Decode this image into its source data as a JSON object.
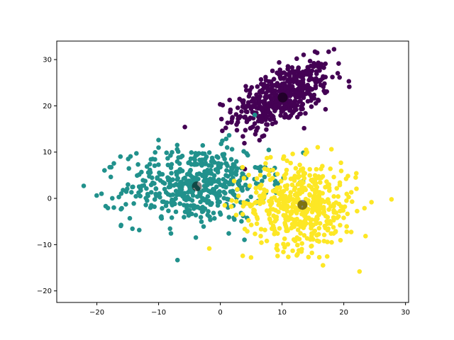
{
  "chart_data": {
    "type": "scatter",
    "title": "",
    "xlabel": "",
    "ylabel": "",
    "xlim": [
      -26.5,
      30.5
    ],
    "ylim": [
      -22.5,
      34
    ],
    "xticks": [
      -20,
      -10,
      0,
      10,
      20,
      30
    ],
    "yticks": [
      -20,
      -10,
      0,
      10,
      20,
      30
    ],
    "grid": false,
    "legend": "none",
    "series": [
      {
        "color": "#440154",
        "count": 500,
        "center_approx": [
          10,
          22
        ],
        "spread_approx": [
          3.9,
          3.6
        ],
        "correlation_approx": 0.55
      },
      {
        "color": "#21918c",
        "count": 500,
        "center_approx": [
          -4,
          3
        ],
        "spread_approx": [
          5.8,
          4.2
        ],
        "correlation_approx": 0.1
      },
      {
        "color": "#fde725",
        "count": 500,
        "center_approx": [
          13,
          -1.5
        ],
        "spread_approx": [
          4.6,
          4.8
        ],
        "correlation_approx": -0.05
      }
    ],
    "centers": [
      {
        "x": 10.1,
        "y": 21.8
      },
      {
        "x": -3.8,
        "y": 2.6
      },
      {
        "x": 13.3,
        "y": -1.4
      }
    ],
    "center_color": "#000000",
    "center_alpha": 0.5
  }
}
